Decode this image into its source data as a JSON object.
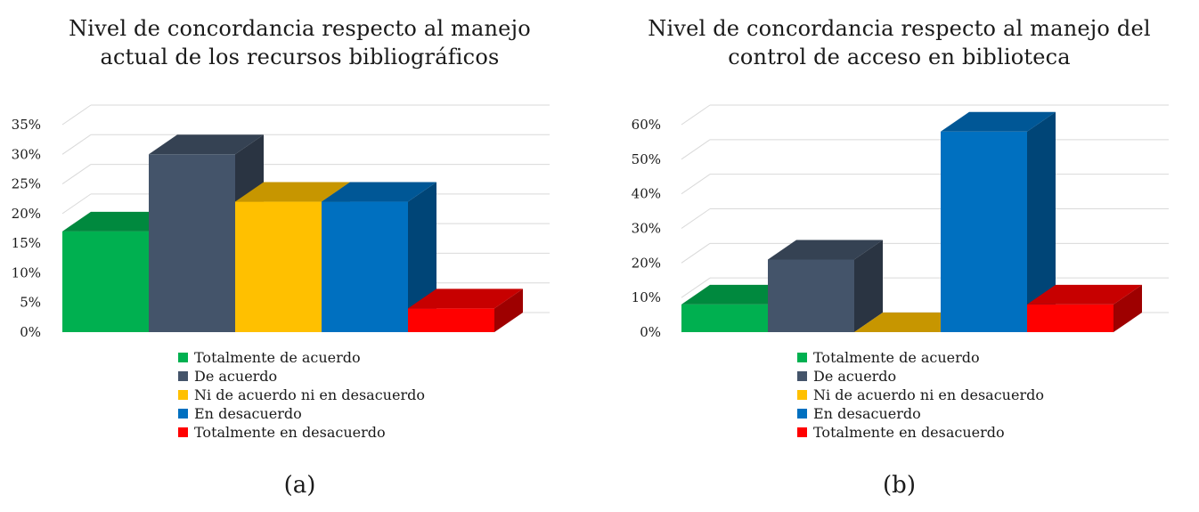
{
  "chart_data": [
    {
      "type": "bar",
      "title": [
        "Nivel de concordancia respecto al manejo",
        "actual de los recursos bibliográficos"
      ],
      "categories": [
        "Totalmente de acuerdo",
        "De acuerdo",
        "Ni de acuerdo ni en desacuerdo",
        "En desacuerdo",
        "Totalmente en desacuerdo"
      ],
      "values": [
        17,
        30,
        22,
        22,
        4
      ],
      "unit": "%",
      "ylim": [
        0,
        35
      ],
      "yticks": [
        "0%",
        "5%",
        "10%",
        "15%",
        "20%",
        "25%",
        "30%",
        "35%"
      ],
      "colors": [
        "#00b050",
        "#44546a",
        "#ffc000",
        "#0070c0",
        "#ff0000"
      ],
      "grid": true,
      "legend_position": "bottom",
      "caption": "(a)"
    },
    {
      "type": "bar",
      "title": [
        "Nivel de concordancia respecto al manejo del",
        "control de acceso en biblioteca"
      ],
      "categories": [
        "Totalmente de acuerdo",
        "De acuerdo",
        "Ni de acuerdo ni en desacuerdo",
        "En desacuerdo",
        "Totalmente en desacuerdo"
      ],
      "values": [
        8,
        21,
        0,
        58,
        8
      ],
      "unit": "%",
      "ylim": [
        0,
        60
      ],
      "yticks": [
        "0%",
        "10%",
        "20%",
        "30%",
        "40%",
        "50%",
        "60%"
      ],
      "colors": [
        "#00b050",
        "#44546a",
        "#ffc000",
        "#0070c0",
        "#ff0000"
      ],
      "grid": true,
      "legend_position": "bottom",
      "caption": "(b)"
    }
  ]
}
